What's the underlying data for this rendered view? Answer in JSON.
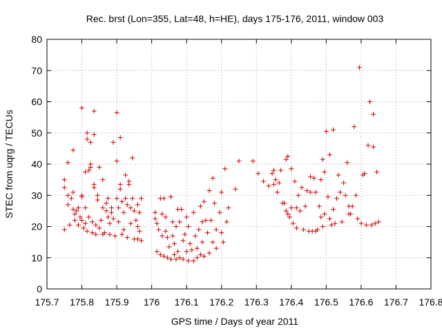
{
  "chart_data": {
    "type": "scatter",
    "title": "Rec. brst (Lon=355, Lat=48, h=HE), days 175-176, 2011, window 003",
    "xlabel": "GPS time / Days of year 2011",
    "ylabel": "STEC from uqrg / TECUs",
    "xlim": [
      175.7,
      176.8
    ],
    "ylim": [
      0,
      80
    ],
    "xticks": [
      "175.7",
      "175.8",
      "175.9",
      "176",
      "176.1",
      "176.2",
      "176.3",
      "176.4",
      "176.5",
      "176.6",
      "176.7",
      "176.8"
    ],
    "yticks": [
      "0",
      "10",
      "20",
      "30",
      "40",
      "50",
      "60",
      "70",
      "80"
    ],
    "grid": true,
    "marker": "plus",
    "color": "#cc0000",
    "series": [
      {
        "name": "STEC",
        "points": [
          [
            175.75,
            35
          ],
          [
            175.75,
            32.5
          ],
          [
            175.75,
            19
          ],
          [
            175.76,
            30
          ],
          [
            175.76,
            27
          ],
          [
            175.76,
            40.5
          ],
          [
            175.765,
            20.5
          ],
          [
            175.77,
            29
          ],
          [
            175.775,
            44.5
          ],
          [
            175.775,
            31
          ],
          [
            175.775,
            25.5
          ],
          [
            175.78,
            24
          ],
          [
            175.78,
            22
          ],
          [
            175.785,
            25
          ],
          [
            175.79,
            26
          ],
          [
            175.79,
            20.5
          ],
          [
            175.795,
            23
          ],
          [
            175.8,
            58
          ],
          [
            175.8,
            30
          ],
          [
            175.8,
            29.5
          ],
          [
            175.8,
            22
          ],
          [
            175.805,
            19.5
          ],
          [
            175.81,
            37.5
          ],
          [
            175.81,
            26
          ],
          [
            175.81,
            21
          ],
          [
            175.815,
            50
          ],
          [
            175.815,
            48
          ],
          [
            175.815,
            18.5
          ],
          [
            175.82,
            38
          ],
          [
            175.82,
            23
          ],
          [
            175.825,
            47
          ],
          [
            175.825,
            40
          ],
          [
            175.825,
            39
          ],
          [
            175.83,
            21.5
          ],
          [
            175.83,
            18
          ],
          [
            175.835,
            57
          ],
          [
            175.835,
            49.5
          ],
          [
            175.835,
            33.5
          ],
          [
            175.835,
            32.5
          ],
          [
            175.84,
            20.5
          ],
          [
            175.84,
            17.5
          ],
          [
            175.845,
            30
          ],
          [
            175.845,
            28.5
          ],
          [
            175.85,
            39
          ],
          [
            175.85,
            19.5
          ],
          [
            175.855,
            22
          ],
          [
            175.86,
            35
          ],
          [
            175.86,
            26
          ],
          [
            175.86,
            17.5
          ],
          [
            175.865,
            18
          ],
          [
            175.87,
            27.5
          ],
          [
            175.87,
            25
          ],
          [
            175.875,
            29
          ],
          [
            175.875,
            23
          ],
          [
            175.88,
            21
          ],
          [
            175.88,
            17.5
          ],
          [
            175.885,
            26
          ],
          [
            175.885,
            24.5
          ],
          [
            175.89,
            47
          ],
          [
            175.89,
            22.5
          ],
          [
            175.895,
            17
          ],
          [
            175.9,
            56.5
          ],
          [
            175.9,
            41
          ],
          [
            175.9,
            29
          ],
          [
            175.905,
            26
          ],
          [
            175.905,
            21.5
          ],
          [
            175.91,
            48.5
          ],
          [
            175.91,
            33.5
          ],
          [
            175.91,
            32
          ],
          [
            175.915,
            28
          ],
          [
            175.915,
            17.5
          ],
          [
            175.92,
            24.5
          ],
          [
            175.92,
            19
          ],
          [
            175.925,
            36.5
          ],
          [
            175.925,
            29
          ],
          [
            175.93,
            27
          ],
          [
            175.93,
            16.5
          ],
          [
            175.935,
            34.5
          ],
          [
            175.935,
            33.5
          ],
          [
            175.94,
            26
          ],
          [
            175.94,
            21
          ],
          [
            175.945,
            42
          ],
          [
            175.945,
            29
          ],
          [
            175.95,
            25
          ],
          [
            175.95,
            16
          ],
          [
            175.955,
            22
          ],
          [
            175.96,
            27
          ],
          [
            175.96,
            20
          ],
          [
            175.96,
            16
          ],
          [
            175.965,
            24.5
          ],
          [
            175.965,
            18.5
          ],
          [
            175.97,
            29
          ],
          [
            175.97,
            15.5
          ],
          [
            176.01,
            24.5
          ],
          [
            176.01,
            22.5
          ],
          [
            176.015,
            21
          ],
          [
            176.015,
            12
          ],
          [
            176.02,
            19
          ],
          [
            176.025,
            29
          ],
          [
            176.025,
            11
          ],
          [
            176.03,
            24
          ],
          [
            176.03,
            17
          ],
          [
            176.035,
            29
          ],
          [
            176.035,
            10.5
          ],
          [
            176.04,
            23
          ],
          [
            176.04,
            18.5
          ],
          [
            176.045,
            16.5
          ],
          [
            176.045,
            10
          ],
          [
            176.05,
            13.5
          ],
          [
            176.055,
            29.5
          ],
          [
            176.055,
            9.5
          ],
          [
            176.06,
            21.5
          ],
          [
            176.06,
            17
          ],
          [
            176.065,
            14.5
          ],
          [
            176.065,
            11
          ],
          [
            176.07,
            20
          ],
          [
            176.07,
            9.5
          ],
          [
            176.075,
            25.5
          ],
          [
            176.075,
            12
          ],
          [
            176.08,
            21.5
          ],
          [
            176.08,
            10
          ],
          [
            176.085,
            25.5
          ],
          [
            176.09,
            15.5
          ],
          [
            176.09,
            9.5
          ],
          [
            176.095,
            17.5
          ],
          [
            176.1,
            23
          ],
          [
            176.1,
            12
          ],
          [
            176.105,
            20
          ],
          [
            176.105,
            9
          ],
          [
            176.11,
            14.5
          ],
          [
            176.115,
            12.5
          ],
          [
            176.12,
            24.5
          ],
          [
            176.12,
            9
          ],
          [
            176.125,
            17
          ],
          [
            176.13,
            13
          ],
          [
            176.13,
            10
          ],
          [
            176.135,
            19
          ],
          [
            176.14,
            26.5
          ],
          [
            176.14,
            11
          ],
          [
            176.145,
            21.5
          ],
          [
            176.145,
            15
          ],
          [
            176.15,
            28
          ],
          [
            176.15,
            10.5
          ],
          [
            176.155,
            22
          ],
          [
            176.16,
            18
          ],
          [
            176.165,
            31.5
          ],
          [
            176.165,
            11.5
          ],
          [
            176.17,
            22
          ],
          [
            176.175,
            35.5
          ],
          [
            176.175,
            15
          ],
          [
            176.18,
            27.5
          ],
          [
            176.185,
            19
          ],
          [
            176.185,
            13
          ],
          [
            176.195,
            24.5
          ],
          [
            176.2,
            31
          ],
          [
            176.2,
            18
          ],
          [
            176.205,
            15
          ],
          [
            176.21,
            38.5
          ],
          [
            176.215,
            21.5
          ],
          [
            176.22,
            26
          ],
          [
            176.24,
            32
          ],
          [
            176.25,
            41
          ],
          [
            176.29,
            41
          ],
          [
            176.305,
            37
          ],
          [
            176.32,
            34.5
          ],
          [
            176.335,
            33
          ],
          [
            176.345,
            37
          ],
          [
            176.35,
            33.5
          ],
          [
            176.35,
            38
          ],
          [
            176.355,
            35
          ],
          [
            176.36,
            31
          ],
          [
            176.365,
            34
          ],
          [
            176.37,
            38
          ],
          [
            176.375,
            27.5
          ],
          [
            176.38,
            27.5
          ],
          [
            176.385,
            41.5
          ],
          [
            176.385,
            25
          ],
          [
            176.39,
            42.5
          ],
          [
            176.39,
            24
          ],
          [
            176.395,
            23
          ],
          [
            176.4,
            38.5
          ],
          [
            176.4,
            26
          ],
          [
            176.405,
            21
          ],
          [
            176.41,
            34.5
          ],
          [
            176.415,
            26
          ],
          [
            176.415,
            19.5
          ],
          [
            176.42,
            30
          ],
          [
            176.425,
            25
          ],
          [
            176.43,
            32.5
          ],
          [
            176.435,
            19
          ],
          [
            176.44,
            26.5
          ],
          [
            176.445,
            31.5
          ],
          [
            176.45,
            18.5
          ],
          [
            176.455,
            36
          ],
          [
            176.455,
            31
          ],
          [
            176.46,
            18.5
          ],
          [
            176.465,
            35.5
          ],
          [
            176.47,
            31
          ],
          [
            176.47,
            18.5
          ],
          [
            176.475,
            19
          ],
          [
            176.48,
            26.5
          ],
          [
            176.485,
            35
          ],
          [
            176.485,
            23
          ],
          [
            176.49,
            41.5
          ],
          [
            176.49,
            20
          ],
          [
            176.495,
            37.5
          ],
          [
            176.495,
            24
          ],
          [
            176.5,
            50.5
          ],
          [
            176.505,
            29.5
          ],
          [
            176.51,
            43
          ],
          [
            176.51,
            22.5
          ],
          [
            176.515,
            20.5
          ],
          [
            176.52,
            51
          ],
          [
            176.52,
            25.5
          ],
          [
            176.525,
            21
          ],
          [
            176.53,
            29
          ],
          [
            176.535,
            36.5
          ],
          [
            176.54,
            31
          ],
          [
            176.545,
            21.5
          ],
          [
            176.55,
            34
          ],
          [
            176.555,
            30
          ],
          [
            176.56,
            40.5
          ],
          [
            176.565,
            26.5
          ],
          [
            176.565,
            24
          ],
          [
            176.57,
            24
          ],
          [
            176.575,
            26.5
          ],
          [
            176.58,
            52
          ],
          [
            176.585,
            30
          ],
          [
            176.59,
            22.5
          ],
          [
            176.595,
            71
          ],
          [
            176.6,
            21
          ],
          [
            176.605,
            36.5
          ],
          [
            176.61,
            37
          ],
          [
            176.615,
            20.5
          ],
          [
            176.62,
            46
          ],
          [
            176.625,
            60
          ],
          [
            176.63,
            20.5
          ],
          [
            176.635,
            56
          ],
          [
            176.635,
            45.5
          ],
          [
            176.64,
            21
          ],
          [
            176.645,
            37.5
          ],
          [
            176.65,
            21.5
          ]
        ]
      }
    ]
  }
}
